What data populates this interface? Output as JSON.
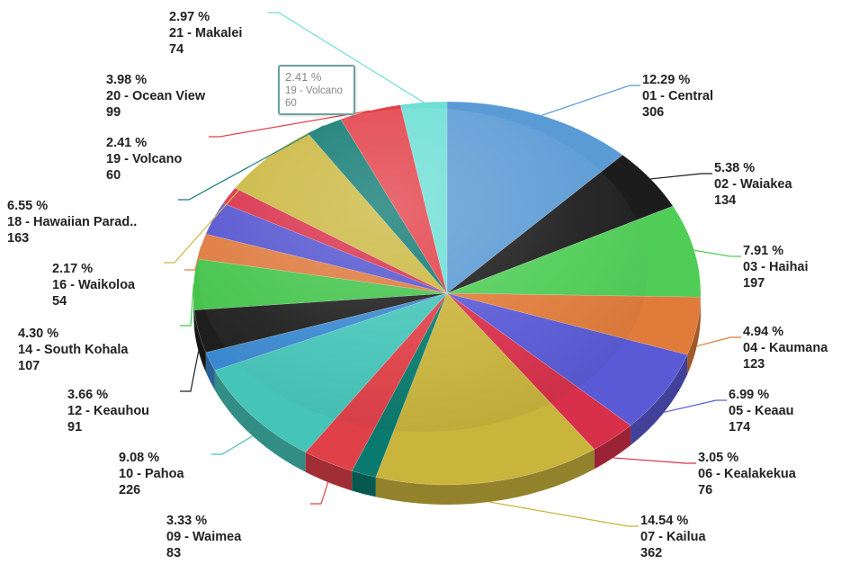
{
  "chart_data": {
    "type": "pie",
    "title": "",
    "slices": [
      {
        "percent": "12.29 %",
        "label": "01 - Central",
        "value": 306,
        "color": "#5b9bd5"
      },
      {
        "percent": "5.38 %",
        "label": "02 - Waiakea",
        "value": 134,
        "color": "#1c1c1c"
      },
      {
        "percent": "7.91 %",
        "label": "03 - Haihai",
        "value": 197,
        "color": "#4fcd57"
      },
      {
        "percent": "4.94 %",
        "label": "04 - Kaumana",
        "value": 123,
        "color": "#e07b3a"
      },
      {
        "percent": "6.99 %",
        "label": "05 - Keaau",
        "value": 174,
        "color": "#5a5ad6"
      },
      {
        "percent": "3.05 %",
        "label": "06 - Kealakekua",
        "value": 76,
        "color": "#d8304a"
      },
      {
        "percent": "14.54 %",
        "label": "07 - Kailua",
        "value": 362,
        "color": "#c9b43c"
      },
      {
        "percent": "",
        "label": "",
        "value": 40,
        "color": "#0a7a6e"
      },
      {
        "percent": "3.33 %",
        "label": "09 - Waimea",
        "value": 83,
        "color": "#e04048"
      },
      {
        "percent": "9.08 %",
        "label": "10 - Pahoa",
        "value": 226,
        "color": "#45c4b8"
      },
      {
        "percent": "",
        "label": "",
        "value": 40,
        "color": "#3a88d0"
      },
      {
        "percent": "3.66 %",
        "label": "12 - Keauhou",
        "value": 91,
        "color": "#1e1e1e"
      },
      {
        "percent": "4.30 %",
        "label": "14 - South Kohala",
        "value": 107,
        "color": "#44c44c"
      },
      {
        "percent": "2.17 %",
        "label": "16 - Waikoloa",
        "value": 54,
        "color": "#de7a3e"
      },
      {
        "percent": "",
        "label": "",
        "value": 70,
        "color": "#5454d0"
      },
      {
        "percent": "",
        "label": "",
        "value": 37,
        "color": "#d8304a"
      },
      {
        "percent": "6.55 %",
        "label": "18 - Hawaiian Parad..",
        "value": 163,
        "color": "#cbb840"
      },
      {
        "percent": "2.41 %",
        "label": "19 - Volcano",
        "value": 60,
        "color": "#107a72"
      },
      {
        "percent": "3.98 %",
        "label": "20 - Ocean View",
        "value": 99,
        "color": "#e24048"
      },
      {
        "percent": "2.97 %",
        "label": "21 - Makalei",
        "value": 74,
        "color": "#6ddfd6"
      }
    ]
  },
  "tooltip": {
    "percent": "2.41 %",
    "label": "19 - Volcano",
    "value": "60"
  }
}
